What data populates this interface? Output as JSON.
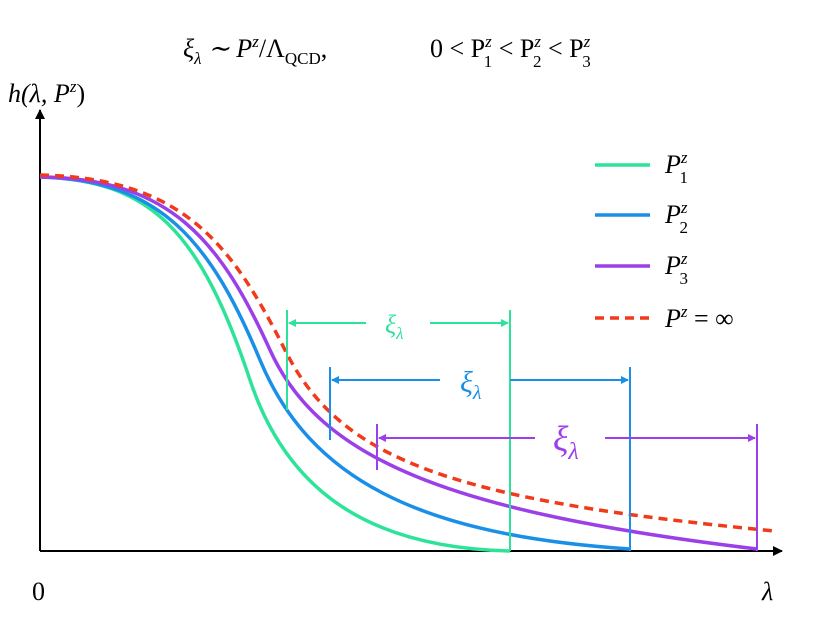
{
  "title": [
    "ξ",
    "λ",
    " ∼ P",
    "z",
    "/Λ",
    "QCD",
    ",",
    "0 < P",
    "z",
    "1",
    " < P",
    "z",
    "2",
    " < P",
    "z",
    "3"
  ],
  "y_axis_label": [
    "h(λ, P",
    "z",
    ")"
  ],
  "x_origin_label": "0",
  "x_axis_label": "λ",
  "legend": [
    [
      "P",
      "z",
      "1"
    ],
    [
      "P",
      "z",
      "2"
    ],
    [
      "P",
      "z",
      "3"
    ],
    [
      "P",
      "z",
      " = ∞"
    ]
  ],
  "widths": [
    [
      "ξ",
      "λ"
    ],
    [
      "ξ",
      "λ"
    ],
    [
      "ξ",
      "λ"
    ]
  ]
}
